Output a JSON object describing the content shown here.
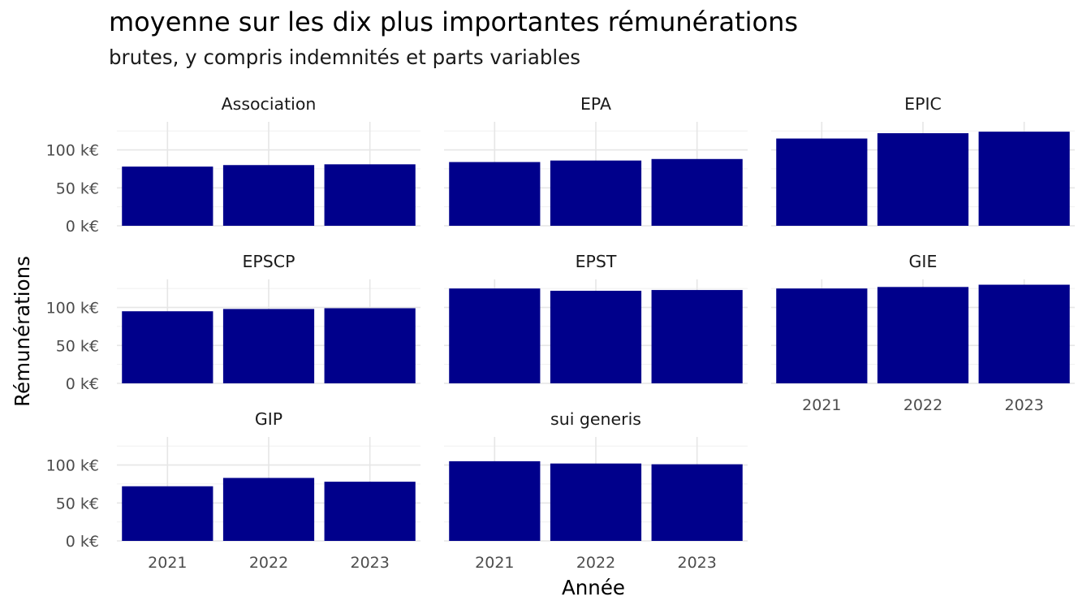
{
  "chart_data": {
    "type": "bar",
    "title": "moyenne sur les dix plus importantes rémunérations",
    "subtitle": "brutes, y compris indemnités et parts variables",
    "xlabel": "Année",
    "ylabel": "Rémunérations",
    "categories": [
      "2021",
      "2022",
      "2023"
    ],
    "y_ticks": [
      {
        "value": 0,
        "label": "0 k€"
      },
      {
        "value": 50,
        "label": "50 k€"
      },
      {
        "value": 100,
        "label": "100 k€"
      }
    ],
    "ylim": [
      0,
      137
    ],
    "bar_color": "#00008B",
    "grid": true,
    "facets": [
      {
        "name": "Association",
        "values": [
          78,
          80,
          81
        ]
      },
      {
        "name": "EPA",
        "values": [
          84,
          86,
          88
        ]
      },
      {
        "name": "EPIC",
        "values": [
          115,
          122,
          124
        ]
      },
      {
        "name": "EPSCP",
        "values": [
          95,
          98,
          99
        ]
      },
      {
        "name": "EPST",
        "values": [
          125,
          122,
          123
        ]
      },
      {
        "name": "GIE",
        "values": [
          125,
          127,
          130
        ]
      },
      {
        "name": "GIP",
        "values": [
          72,
          83,
          78
        ]
      },
      {
        "name": "sui generis",
        "values": [
          105,
          102,
          101
        ]
      }
    ]
  }
}
